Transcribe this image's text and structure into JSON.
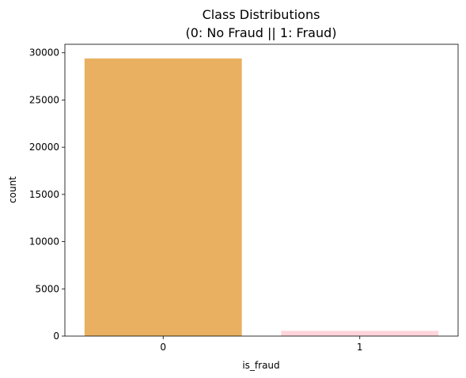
{
  "chart_data": {
    "type": "bar",
    "title_line1": "Class Distributions",
    "title_line2": "(0: No Fraud || 1: Fraud)",
    "xlabel": "is_fraud",
    "ylabel": "count",
    "categories": [
      "0",
      "1"
    ],
    "values": [
      29400,
      560
    ],
    "colors": [
      "#E8B060",
      "#FFD5DC"
    ],
    "ylim": [
      0,
      30900
    ],
    "yticks": [
      0,
      5000,
      10000,
      15000,
      20000,
      25000,
      30000
    ],
    "grid": false,
    "legend": "none"
  }
}
